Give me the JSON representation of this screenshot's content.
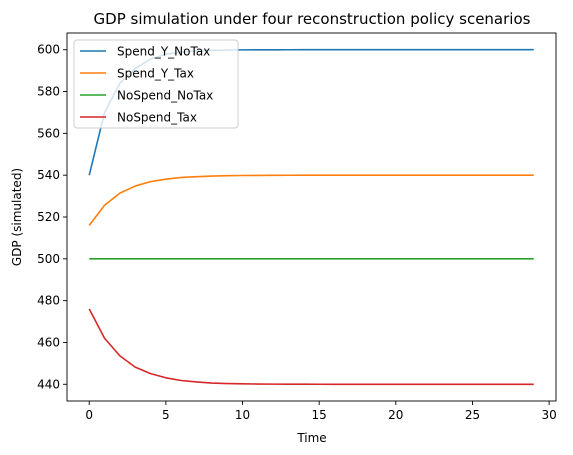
{
  "chart_data": {
    "type": "line",
    "title": "GDP simulation under four reconstruction policy scenarios",
    "xlabel": "Time",
    "ylabel": "GDP (simulated)",
    "xlim": [
      -1.45,
      30.45
    ],
    "ylim": [
      432,
      608
    ],
    "xticks": [
      0,
      5,
      10,
      15,
      20,
      25,
      30
    ],
    "yticks": [
      440,
      460,
      480,
      500,
      520,
      540,
      560,
      580,
      600
    ],
    "grid": false,
    "legend_position": "top-left",
    "x": [
      0,
      1,
      2,
      3,
      4,
      5,
      6,
      7,
      8,
      9,
      10,
      11,
      12,
      13,
      14,
      15,
      16,
      17,
      18,
      19,
      20,
      21,
      22,
      23,
      24,
      25,
      26,
      27,
      28,
      29
    ],
    "series": [
      {
        "name": "Spend_Y_NoTax",
        "color": "#1f77b4",
        "values": [
          540,
          570,
          584,
          591,
          595.5,
          597.8,
          598.9,
          599.4,
          599.7,
          599.85,
          599.93,
          599.96,
          599.98,
          599.99,
          600,
          600,
          600,
          600,
          600,
          600,
          600,
          600,
          600,
          600,
          600,
          600,
          600,
          600,
          600,
          600
        ]
      },
      {
        "name": "Spend_Y_Tax",
        "color": "#ff7f0e",
        "values": [
          516,
          525.6,
          531.4,
          534.8,
          536.9,
          538.1,
          538.9,
          539.3,
          539.6,
          539.75,
          539.85,
          539.9,
          539.94,
          539.97,
          539.98,
          539.99,
          540,
          540,
          540,
          540,
          540,
          540,
          540,
          540,
          540,
          540,
          540,
          540,
          540,
          540
        ]
      },
      {
        "name": "NoSpend_NoTax",
        "color": "#2ca02c",
        "values": [
          500,
          500,
          500,
          500,
          500,
          500,
          500,
          500,
          500,
          500,
          500,
          500,
          500,
          500,
          500,
          500,
          500,
          500,
          500,
          500,
          500,
          500,
          500,
          500,
          500,
          500,
          500,
          500,
          500,
          500
        ]
      },
      {
        "name": "NoSpend_Tax",
        "color": "#d62728",
        "values": [
          476,
          462,
          453.6,
          448.2,
          445.1,
          443.1,
          441.8,
          441.1,
          440.6,
          440.35,
          440.2,
          440.12,
          440.07,
          440.04,
          440.02,
          440.01,
          440,
          440,
          440,
          440,
          440,
          440,
          440,
          440,
          440,
          440,
          440,
          440,
          440,
          440
        ]
      }
    ]
  }
}
